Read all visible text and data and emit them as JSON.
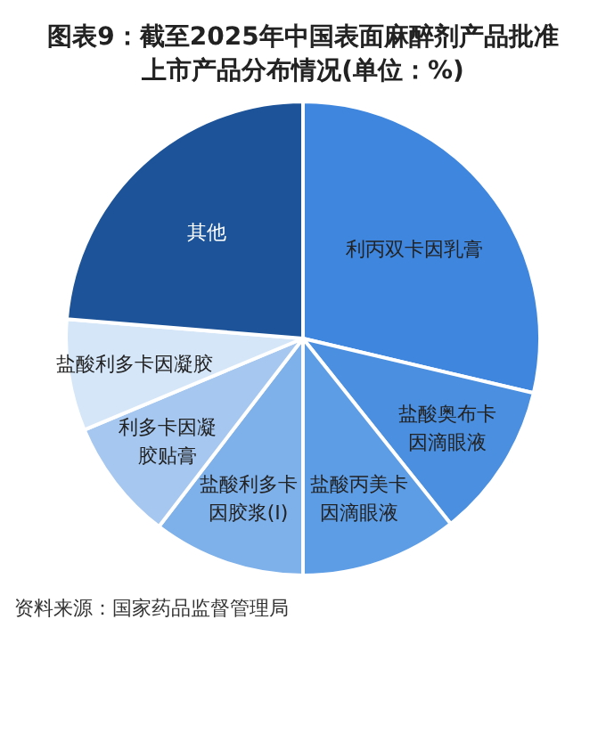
{
  "chart_data": {
    "type": "pie",
    "title": "图表9：截至2025年中国表面麻醉剂产品批准上市产品分布情况(单位：%)",
    "categories": [
      "利丙双卡因乳膏",
      "盐酸奥布卡因滴眼液",
      "盐酸丙美卡因滴眼液",
      "盐酸利多卡因胶浆(Ⅰ)",
      "利多卡因凝胶贴膏",
      "盐酸利多卡因凝胶",
      "其他"
    ],
    "values": [
      28.7,
      10.6,
      10.7,
      10.4,
      8.3,
      7.6,
      23.7
    ],
    "colors": [
      "#3f86de",
      "#4b8fe0",
      "#5d9de6",
      "#7eb0ea",
      "#a5c7f0",
      "#d5e6f9",
      "#1d5499"
    ],
    "legend": false,
    "annotations": [
      "资料来源：国家药品监督管理局"
    ]
  }
}
